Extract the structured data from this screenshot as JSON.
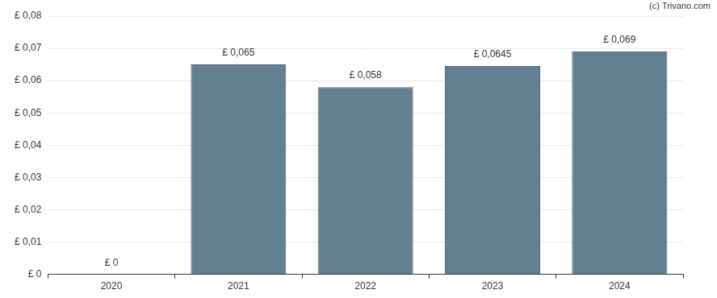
{
  "chart_data": {
    "type": "bar",
    "annotations": [
      "(c) Trivano.com"
    ],
    "categories": [
      "2020",
      "2021",
      "2022",
      "2023",
      "2024"
    ],
    "values": [
      0,
      0.065,
      0.058,
      0.0645,
      0.069
    ],
    "value_labels": [
      "£ 0",
      "£ 0,065",
      "£ 0,058",
      "£ 0,0645",
      "£ 0,069"
    ],
    "data_labels": true,
    "color": "#647f92",
    "ylim": [
      0,
      0.08
    ],
    "yticks": [
      {
        "value": 0,
        "label": "£ 0"
      },
      {
        "value": 0.01,
        "label": "£ 0,01"
      },
      {
        "value": 0.02,
        "label": "£ 0,02"
      },
      {
        "value": 0.03,
        "label": "£ 0,03"
      },
      {
        "value": 0.04,
        "label": "£ 0,04"
      },
      {
        "value": 0.05,
        "label": "£ 0,05"
      },
      {
        "value": 0.06,
        "label": "£ 0,06"
      },
      {
        "value": 0.07,
        "label": "£ 0,07"
      },
      {
        "value": 0.08,
        "label": "£ 0,08"
      }
    ],
    "grid": true
  }
}
